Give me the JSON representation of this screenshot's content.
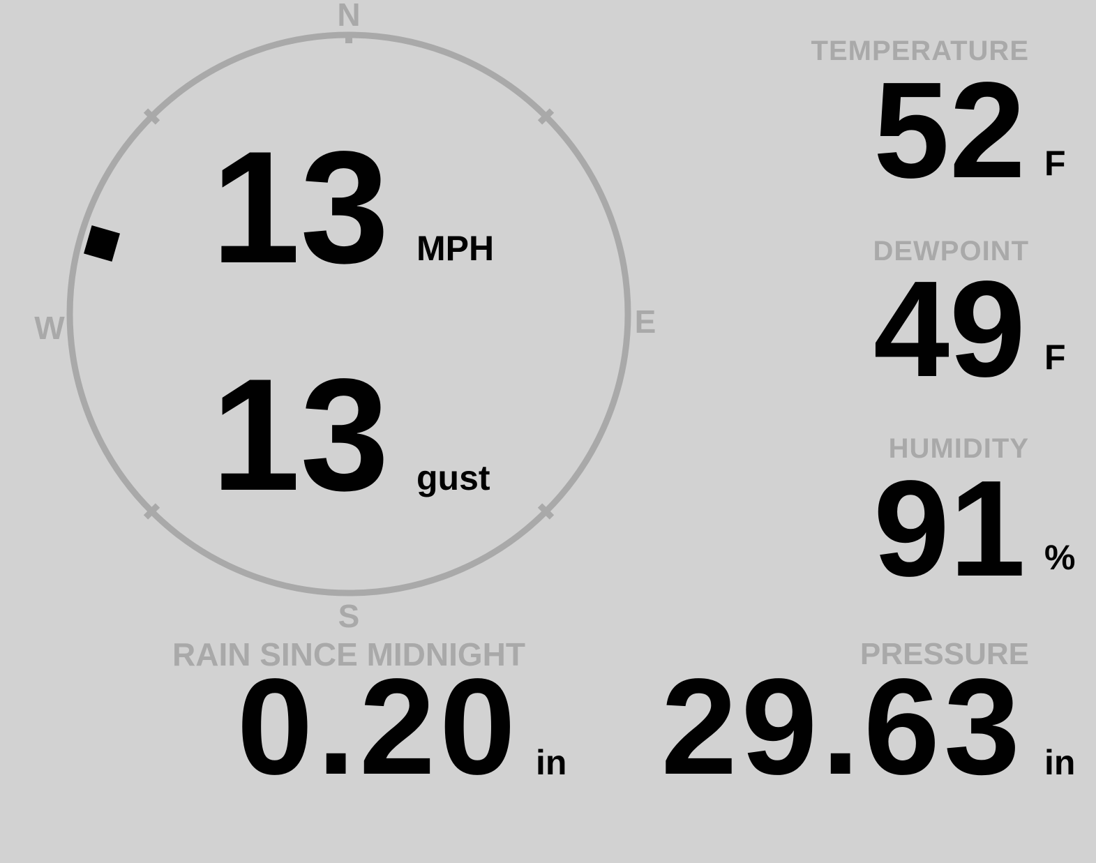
{
  "colors": {
    "background": "#d2d2d2",
    "muted_gray": "#a9a9a9",
    "ink": "#010101"
  },
  "wind": {
    "speed": "13",
    "speed_unit": "MPH",
    "gust": "13",
    "gust_unit": "gust",
    "direction_degrees": 286,
    "compass": {
      "north": "N",
      "east": "E",
      "south": "S",
      "west": "W"
    }
  },
  "readouts": {
    "temperature": {
      "label": "TEMPERATURE",
      "value": "52",
      "unit": "F"
    },
    "dewpoint": {
      "label": "DEWPOINT",
      "value": "49",
      "unit": "F"
    },
    "humidity": {
      "label": "HUMIDITY",
      "value": "91",
      "unit": "%"
    },
    "rain": {
      "label": "RAIN SINCE MIDNIGHT",
      "value": "0.20",
      "unit": "in"
    },
    "pressure": {
      "label": "PRESSURE",
      "value": "29.63",
      "unit": "in"
    }
  }
}
